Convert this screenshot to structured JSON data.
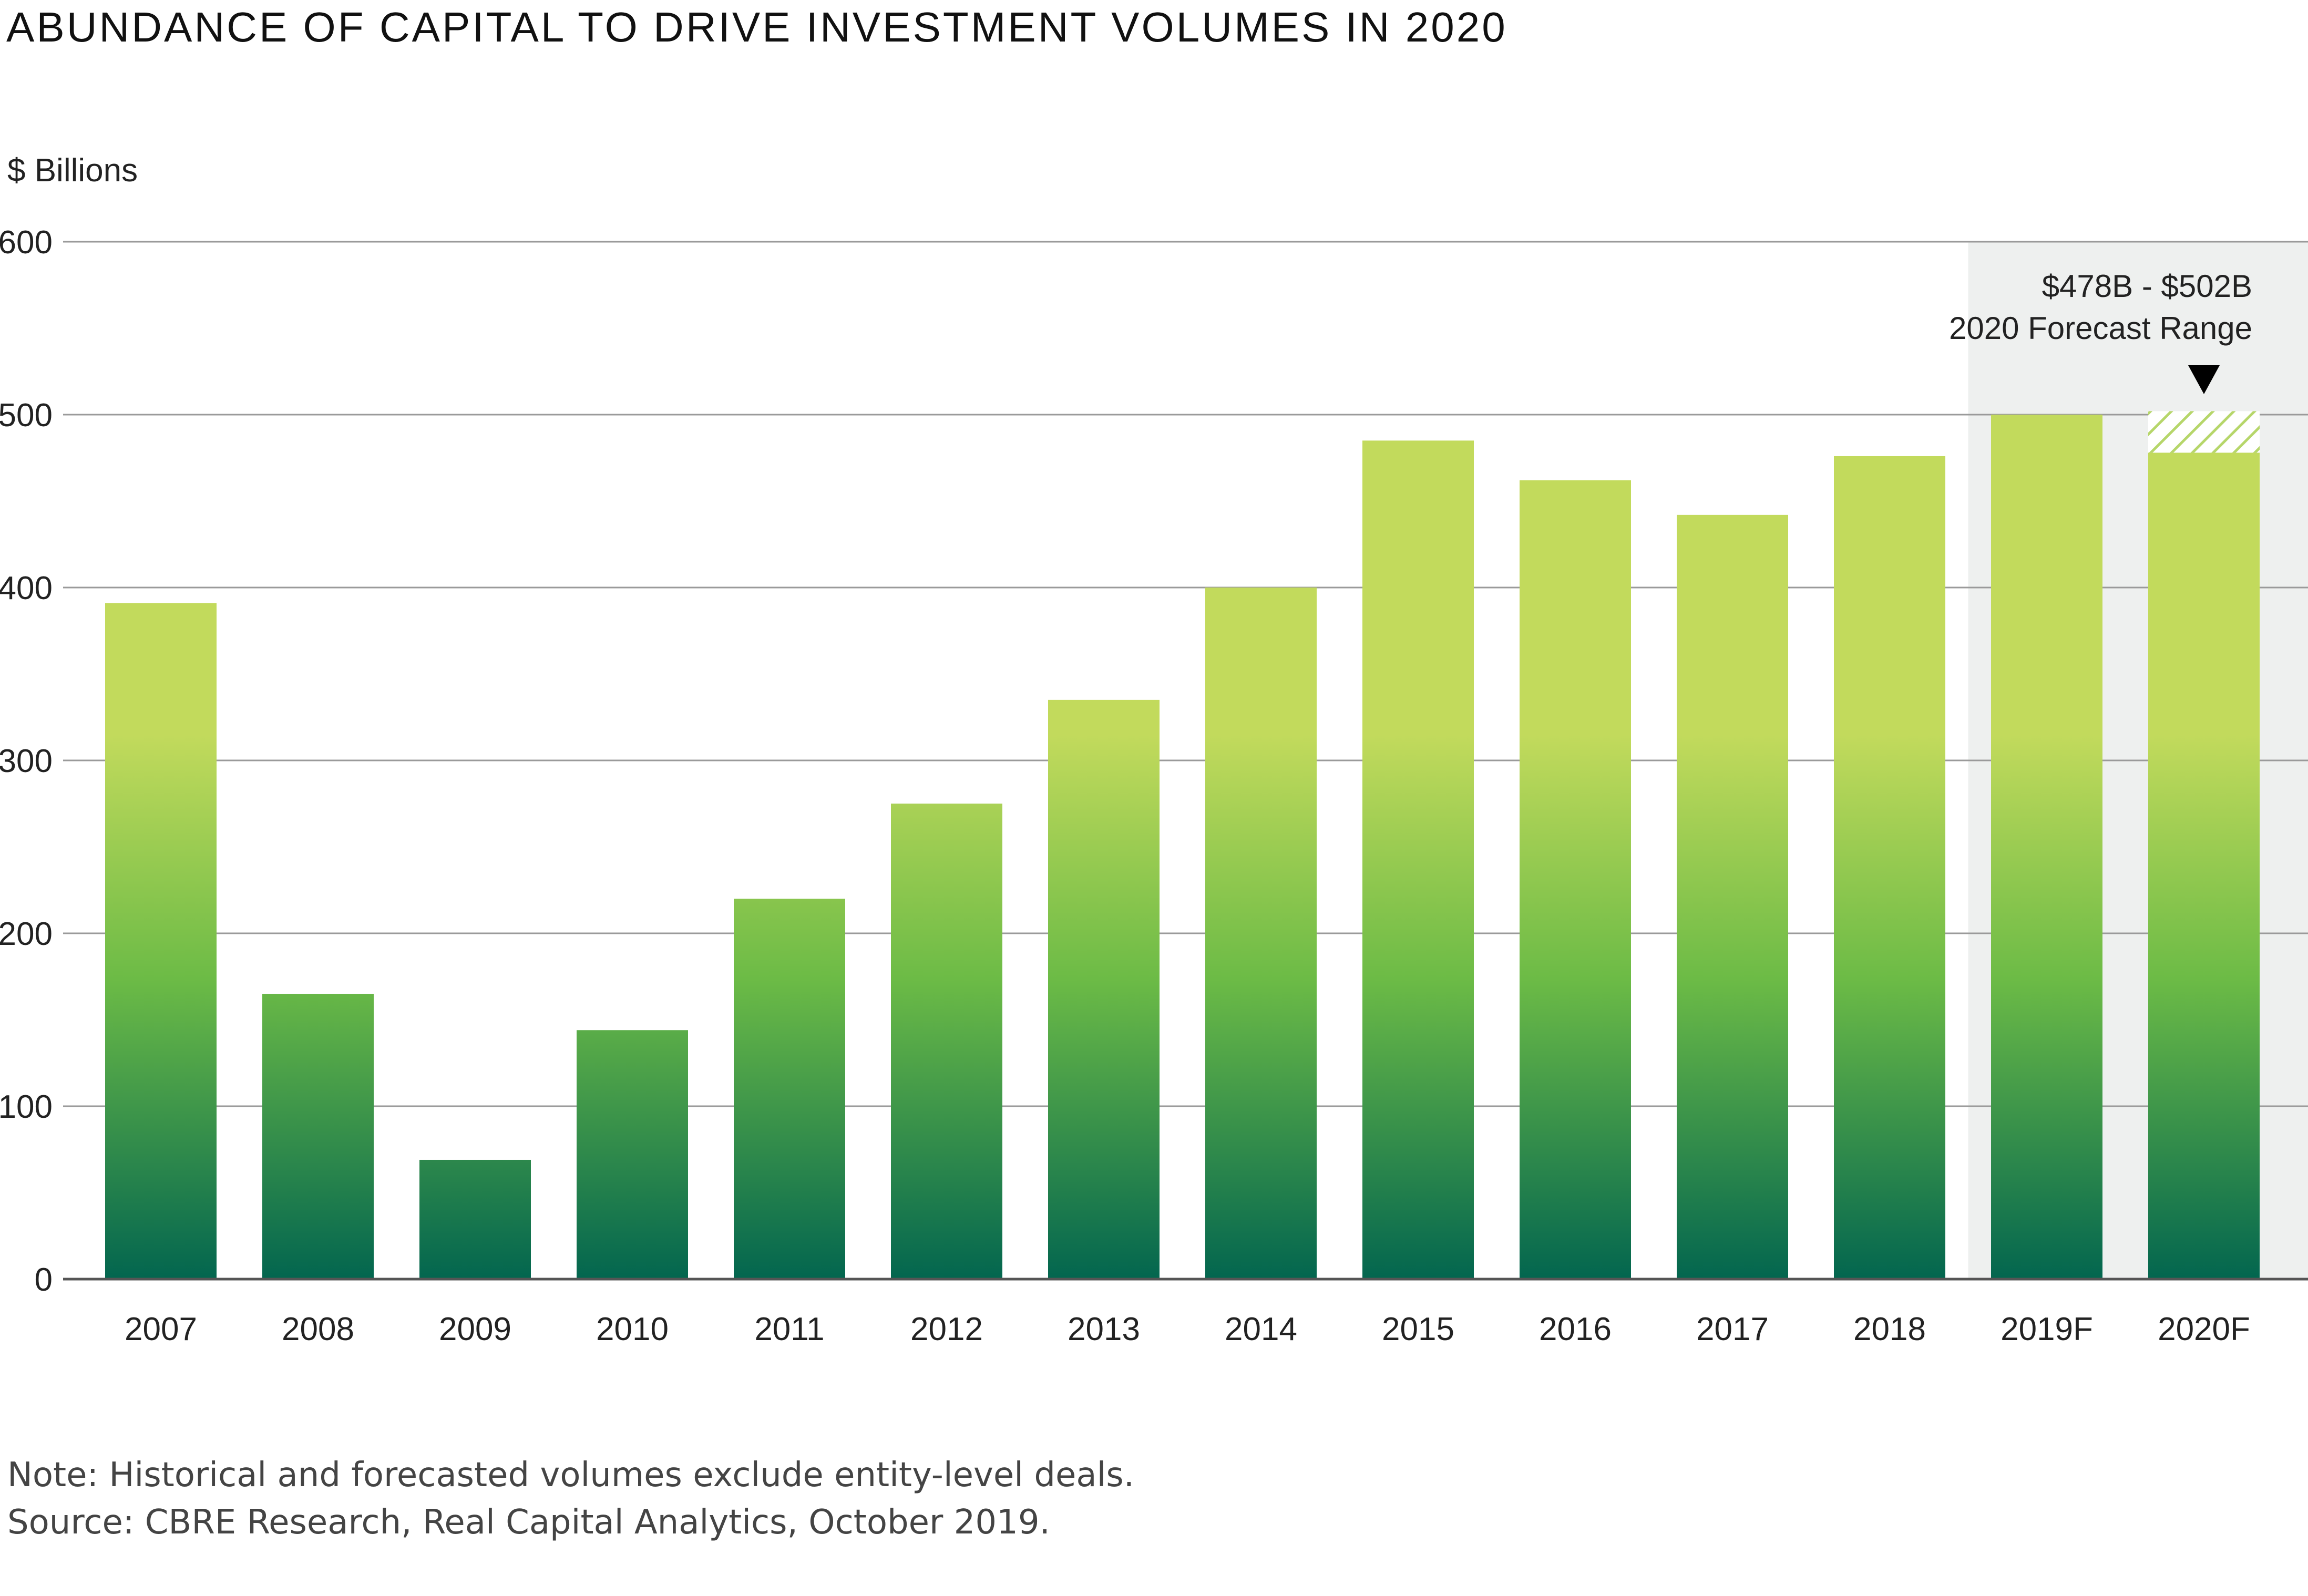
{
  "title": "ABUNDANCE OF CAPITAL TO DRIVE INVESTMENT VOLUMES IN 2020",
  "note": "Note: Historical and forecasted volumes exclude entity-level deals.",
  "source": "Source: CBRE Research, Real Capital Analytics, October 2019.",
  "colors": {
    "bar_top": "#c2da5c",
    "bar_mid": "#6cbb46",
    "bar_bottom": "#03664f",
    "forecast_shade": "#eef0ef",
    "gridline": "#9a9a9a",
    "hatch": "#b6d66a"
  },
  "chart_data": {
    "type": "bar",
    "ylabel": "$ Billions",
    "ylim": [
      0,
      600
    ],
    "yticks": [
      0,
      100,
      200,
      300,
      400,
      500,
      600
    ],
    "grid": true,
    "categories": [
      "2007",
      "2008",
      "2009",
      "2010",
      "2011",
      "2012",
      "2013",
      "2014",
      "2015",
      "2016",
      "2017",
      "2018",
      "2019F",
      "2020F"
    ],
    "values": [
      391,
      165,
      69,
      144,
      220,
      275,
      335,
      400,
      485,
      462,
      442,
      476,
      500,
      478
    ],
    "forecast_categories": [
      "2019F",
      "2020F"
    ],
    "forecast_range": {
      "category": "2020F",
      "low": 478,
      "high": 502
    },
    "annotation": {
      "line1": "$478B - $502B",
      "line2": "2020 Forecast Range",
      "marker": "down-triangle"
    }
  }
}
